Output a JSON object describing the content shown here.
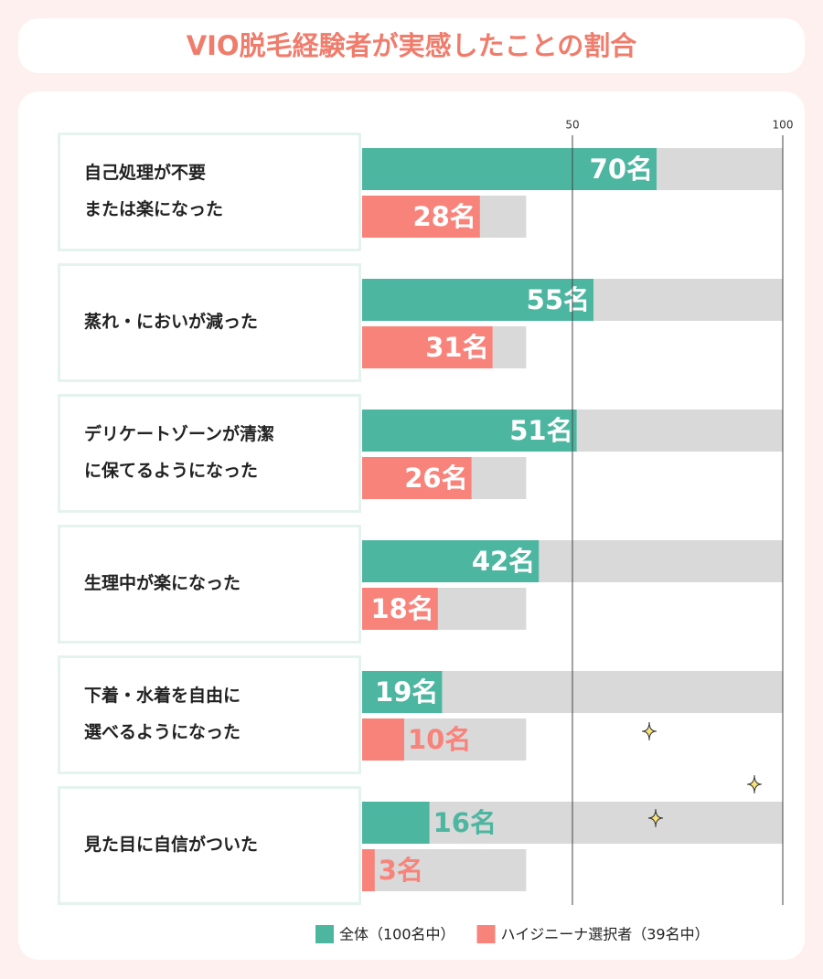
{
  "chart_data": {
    "type": "bar",
    "orientation": "horizontal",
    "title": "VIO脱毛経験者が実感したことの割合",
    "categories": [
      "自己処理が不要\nまたは楽になった",
      "蒸れ・においが減った",
      "デリケートゾーンが清潔\nに保てるようになった",
      "生理中が楽になった",
      "下着・水着を自由に\n選べるようになった",
      "見た目に自信がついた"
    ],
    "series": [
      {
        "name": "全体（100名中）",
        "color": "#4db6a0",
        "total": 100,
        "values": [
          70,
          55,
          51,
          42,
          19,
          16
        ],
        "value_labels": [
          "70名",
          "55名",
          "51名",
          "42名",
          "19名",
          "16名"
        ]
      },
      {
        "name": "ハイジニーナ選択者（39名中）",
        "color": "#f8837a",
        "total": 39,
        "values": [
          28,
          31,
          26,
          18,
          10,
          3
        ],
        "value_labels": [
          "28名",
          "31名",
          "26名",
          "18名",
          "10名",
          "3名"
        ]
      }
    ],
    "track_color": "#d9d9d9",
    "xlim": [
      0,
      100
    ],
    "xticks": [
      50,
      100
    ]
  }
}
